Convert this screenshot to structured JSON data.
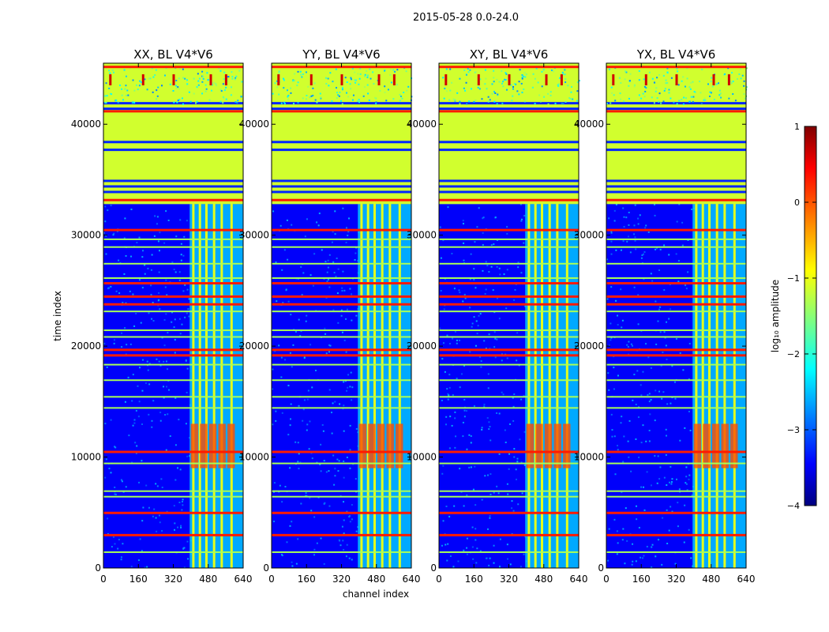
{
  "suptitle": "2015-05-28 0.0-24.0",
  "chart_data": {
    "type": "heatmap",
    "xlabel": "channel index",
    "ylabel": "time index",
    "xlim": [
      0,
      640
    ],
    "ylim": [
      0,
      45500
    ],
    "xticks": [
      "0",
      "160",
      "320",
      "480",
      "640"
    ],
    "yticks": [
      "0",
      "10000",
      "20000",
      "30000",
      "40000"
    ],
    "xtick_values": [
      0,
      160,
      320,
      480,
      640
    ],
    "ytick_values": [
      0,
      10000,
      20000,
      30000,
      40000
    ],
    "panels": [
      {
        "title": "XX, BL V4*V6"
      },
      {
        "title": "YY, BL V4*V6"
      },
      {
        "title": "XY, BL V4*V6"
      },
      {
        "title": "YX, BL V4*V6"
      }
    ],
    "colorbar": {
      "label": "log₁₀ amplitude",
      "range": [
        -4,
        1
      ],
      "ticks": [
        "1",
        "0",
        "−1",
        "−2",
        "−3",
        "−4"
      ],
      "tick_values": [
        1,
        0,
        -1,
        -2,
        -3,
        -4
      ],
      "colormap": [
        "#00007f",
        "#0000ff",
        "#007fff",
        "#00ffff",
        "#7fff7f",
        "#ffff00",
        "#ff7f00",
        "#ff0000",
        "#7f0000"
      ]
    },
    "features": {
      "flagged_band_time": [
        32800,
        45500
      ],
      "flagged_band_level": -1.1,
      "rfi_channels": [
        410,
        440,
        470,
        505,
        540,
        585
      ],
      "strong_rfi_times": [
        [
          9000,
          13000
        ]
      ],
      "orange_time_rows": [
        3000,
        5000,
        10500,
        19200,
        19700,
        23800,
        24500,
        25700,
        30500,
        33200,
        41200,
        45200
      ],
      "green_time_rows": [
        1500,
        6500,
        7000,
        9500,
        14500,
        15500,
        17000,
        18400,
        20900,
        21500,
        23200,
        26200,
        27500,
        29000,
        29700
      ]
    }
  }
}
